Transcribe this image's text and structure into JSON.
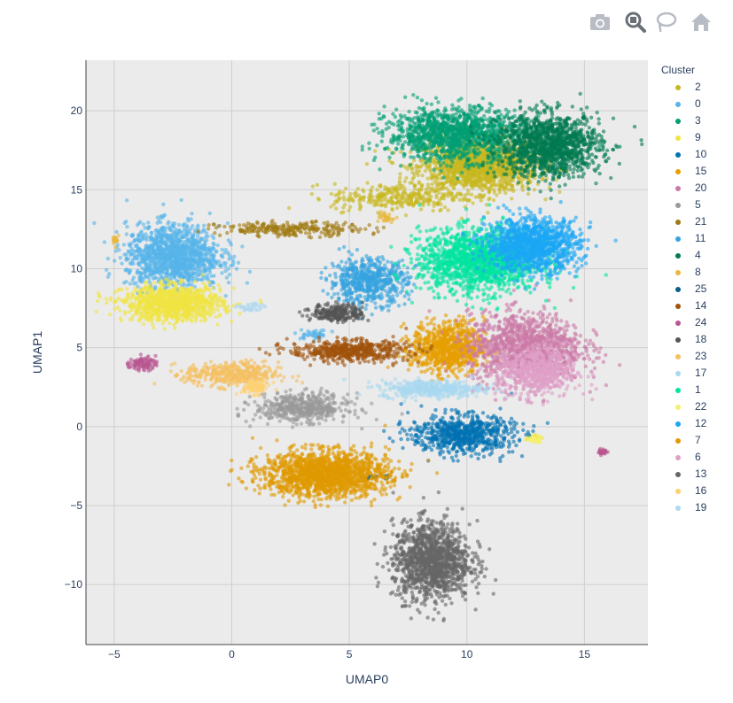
{
  "modebar": {
    "camera": "camera-icon",
    "zoom": "zoom-icon",
    "lasso": "lasso-icon",
    "home": "home-icon"
  },
  "chart_data": {
    "type": "scatter",
    "xlabel": "UMAP0",
    "ylabel": "UMAP1",
    "xlim": [
      -6.2,
      17.7
    ],
    "ylim": [
      -13.8,
      23.2
    ],
    "xticks": [
      -5,
      0,
      5,
      10,
      15
    ],
    "yticks": [
      -10,
      -5,
      0,
      5,
      10,
      15,
      20
    ],
    "xtick_labels": [
      "−5",
      "0",
      "5",
      "10",
      "15"
    ],
    "ytick_labels": [
      "−10",
      "−5",
      "0",
      "5",
      "10",
      "15",
      "20"
    ],
    "grid": true,
    "legend_title": "Cluster",
    "legend_position": "right",
    "series": [
      {
        "name": "2",
        "color": "#c8b820",
        "blobs": [
          [
            10.5,
            16.5,
            2.3,
            1.5,
            1500
          ],
          [
            7.0,
            14.5,
            2.5,
            0.8,
            300
          ]
        ]
      },
      {
        "name": "0",
        "color": "#56b4e9",
        "blobs": [
          [
            -2.5,
            10.8,
            1.8,
            1.8,
            1300
          ],
          [
            3.5,
            5.8,
            0.6,
            0.3,
            40
          ]
        ]
      },
      {
        "name": "3",
        "color": "#009e73",
        "blobs": [
          [
            9.5,
            18.5,
            2.6,
            1.5,
            1300
          ]
        ]
      },
      {
        "name": "9",
        "color": "#f0e442",
        "blobs": [
          [
            -2.5,
            7.8,
            1.9,
            1.0,
            1000
          ],
          [
            12.8,
            -0.7,
            0.3,
            0.2,
            40
          ]
        ]
      },
      {
        "name": "10",
        "color": "#0072b2",
        "blobs": [
          [
            9.8,
            -0.5,
            2.0,
            1.1,
            700
          ]
        ]
      },
      {
        "name": "15",
        "color": "#e69f00",
        "blobs": [
          [
            9.2,
            5.0,
            1.4,
            1.5,
            800
          ]
        ]
      },
      {
        "name": "20",
        "color": "#cc79a7",
        "blobs": [
          [
            12.5,
            5.0,
            2.2,
            2.0,
            1200
          ]
        ]
      },
      {
        "name": "5",
        "color": "#999999",
        "blobs": [
          [
            3.0,
            1.2,
            1.8,
            0.8,
            500
          ]
        ]
      },
      {
        "name": "21",
        "color": "#a07a10",
        "blobs": [
          [
            2.5,
            12.5,
            2.8,
            0.4,
            250
          ]
        ]
      },
      {
        "name": "11",
        "color": "#35a4e0",
        "blobs": [
          [
            5.8,
            9.2,
            1.5,
            1.3,
            600
          ]
        ]
      },
      {
        "name": "4",
        "color": "#007a50",
        "blobs": [
          [
            13.5,
            17.8,
            2.0,
            1.8,
            1300
          ]
        ]
      },
      {
        "name": "8",
        "color": "#e8b840",
        "blobs": [
          [
            -4.9,
            11.8,
            0.15,
            0.3,
            25
          ],
          [
            6.6,
            13.2,
            0.3,
            0.25,
            30
          ]
        ]
      },
      {
        "name": "25",
        "color": "#0a5f8a",
        "blobs": [
          [
            6.1,
            -3.2,
            0.5,
            0.15,
            25
          ]
        ]
      },
      {
        "name": "14",
        "color": "#a0520a",
        "blobs": [
          [
            5.0,
            4.8,
            2.3,
            0.6,
            500
          ]
        ]
      },
      {
        "name": "24",
        "color": "#b85590",
        "blobs": [
          [
            -3.8,
            4.0,
            0.5,
            0.4,
            90
          ],
          [
            15.8,
            -1.6,
            0.2,
            0.15,
            25
          ]
        ]
      },
      {
        "name": "18",
        "color": "#555555",
        "blobs": [
          [
            4.5,
            7.2,
            1.0,
            0.5,
            250
          ]
        ]
      },
      {
        "name": "23",
        "color": "#f5c060",
        "blobs": [
          [
            0.0,
            3.3,
            1.8,
            0.7,
            400
          ]
        ]
      },
      {
        "name": "17",
        "color": "#a8d8f0",
        "blobs": [
          [
            8.5,
            2.4,
            2.0,
            0.5,
            400
          ]
        ]
      },
      {
        "name": "1",
        "color": "#00e5a0",
        "blobs": [
          [
            10.5,
            10.5,
            2.3,
            1.8,
            1500
          ]
        ]
      },
      {
        "name": "22",
        "color": "#f5f070",
        "blobs": [
          [
            12.9,
            -0.8,
            0.3,
            0.2,
            30
          ]
        ]
      },
      {
        "name": "12",
        "color": "#1aa7f5",
        "blobs": [
          [
            12.8,
            11.5,
            1.8,
            1.5,
            1200
          ]
        ]
      },
      {
        "name": "7",
        "color": "#e09a00",
        "blobs": [
          [
            4.0,
            -3.0,
            2.4,
            1.3,
            1600
          ]
        ]
      },
      {
        "name": "6",
        "color": "#e0a0c8",
        "blobs": [
          [
            13.0,
            3.5,
            1.5,
            1.5,
            600
          ]
        ]
      },
      {
        "name": "13",
        "color": "#666666",
        "blobs": [
          [
            8.5,
            -8.5,
            1.5,
            2.2,
            1300
          ]
        ]
      },
      {
        "name": "16",
        "color": "#ffd070",
        "blobs": [
          [
            1.0,
            2.5,
            0.6,
            0.4,
            80
          ]
        ]
      },
      {
        "name": "19",
        "color": "#b0d8f0",
        "blobs": [
          [
            0.8,
            7.5,
            0.5,
            0.3,
            40
          ]
        ]
      }
    ]
  }
}
